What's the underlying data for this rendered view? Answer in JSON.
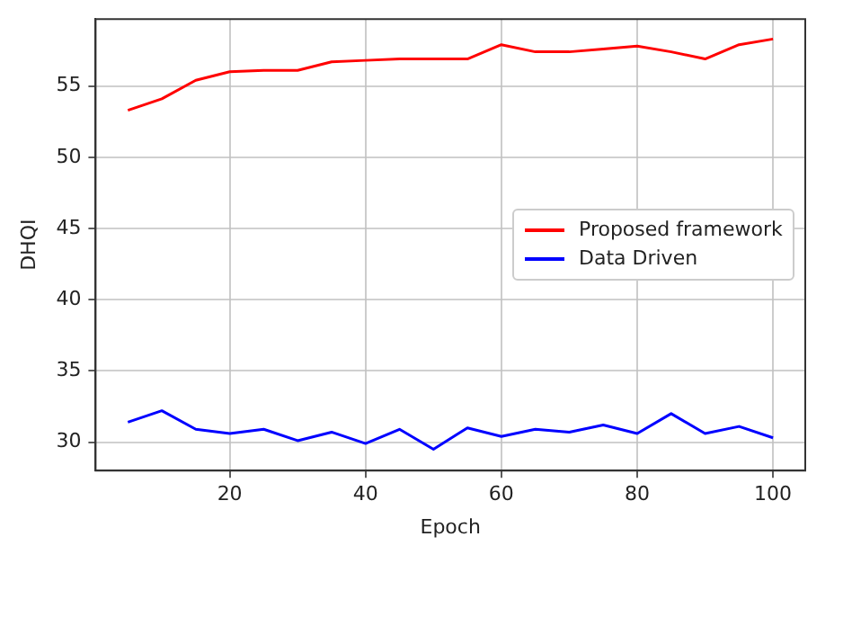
{
  "chart_data": {
    "type": "line",
    "xlabel": "Epoch",
    "ylabel": "DHQI",
    "x": [
      5,
      10,
      15,
      20,
      25,
      30,
      35,
      40,
      45,
      50,
      55,
      60,
      65,
      70,
      75,
      80,
      85,
      90,
      95,
      100
    ],
    "series": [
      {
        "name": "Proposed framework",
        "color": "#ff0000",
        "values": [
          53.3,
          54.1,
          55.4,
          56.0,
          56.1,
          56.1,
          56.7,
          56.8,
          56.9,
          56.9,
          56.9,
          57.9,
          57.4,
          57.4,
          57.6,
          57.8,
          57.4,
          56.9,
          57.9,
          58.3
        ]
      },
      {
        "name": "Data Driven",
        "color": "#0000ff",
        "values": [
          31.4,
          32.2,
          30.9,
          30.6,
          30.9,
          30.1,
          30.7,
          29.9,
          30.9,
          29.5,
          31.0,
          30.4,
          30.9,
          30.7,
          31.2,
          30.6,
          32.0,
          30.6,
          31.1,
          30.3
        ]
      }
    ],
    "xlim": [
      0.25,
      104.75
    ],
    "xticks": [
      20,
      40,
      60,
      80,
      100
    ],
    "ylim": [
      28,
      59.7
    ],
    "yticks": [
      30,
      35,
      40,
      45,
      50,
      55
    ],
    "grid": true,
    "legend": "center right",
    "marker": "none",
    "line_style": "solid"
  }
}
